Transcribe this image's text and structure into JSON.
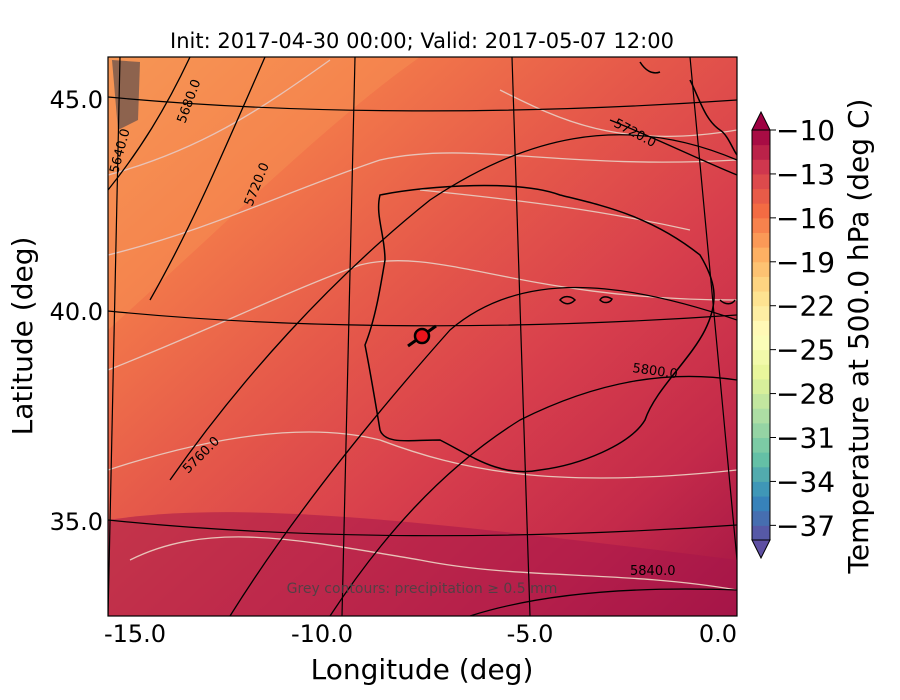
{
  "title": "Init: 2017-04-30 00:00; Valid: 2017-05-07 12:00",
  "xlabel": "Longitude (deg)",
  "ylabel": "Latitude (deg)",
  "x_ticks": [
    "-15.0",
    "-10.0",
    "-5.0",
    "0.0"
  ],
  "y_ticks": [
    "45.0",
    "40.0",
    "35.0"
  ],
  "colorbar": {
    "label": "Temperature at 500.0 hPa (deg C)",
    "ticks": [
      "−10",
      "−13",
      "−16",
      "−19",
      "−22",
      "−25",
      "−28",
      "−31",
      "−34",
      "−37"
    ],
    "range": [
      -38,
      -10
    ],
    "extend": "both",
    "colormap": "Spectral_r"
  },
  "note": "Grey contours: precipitation ≥ 0.5 mm",
  "contour_labels": [
    "5640.0",
    "5680.0",
    "5720.0",
    "5720.0",
    "5760.0",
    "5800.0",
    "5840.0"
  ],
  "marker": {
    "color": "#e8141c",
    "outline": "#000000"
  },
  "chart_data": {
    "type": "map",
    "xlim": [
      -16,
      0
    ],
    "ylim": [
      33,
      46
    ],
    "field": "Temperature at 500.0 hPa (deg C)",
    "geopotential_contours": [
      5640,
      5680,
      5720,
      5760,
      5800,
      5840
    ],
    "graticule": {
      "lon": [
        -15,
        -10,
        -5,
        0
      ],
      "lat": [
        35,
        40,
        45
      ]
    }
  }
}
